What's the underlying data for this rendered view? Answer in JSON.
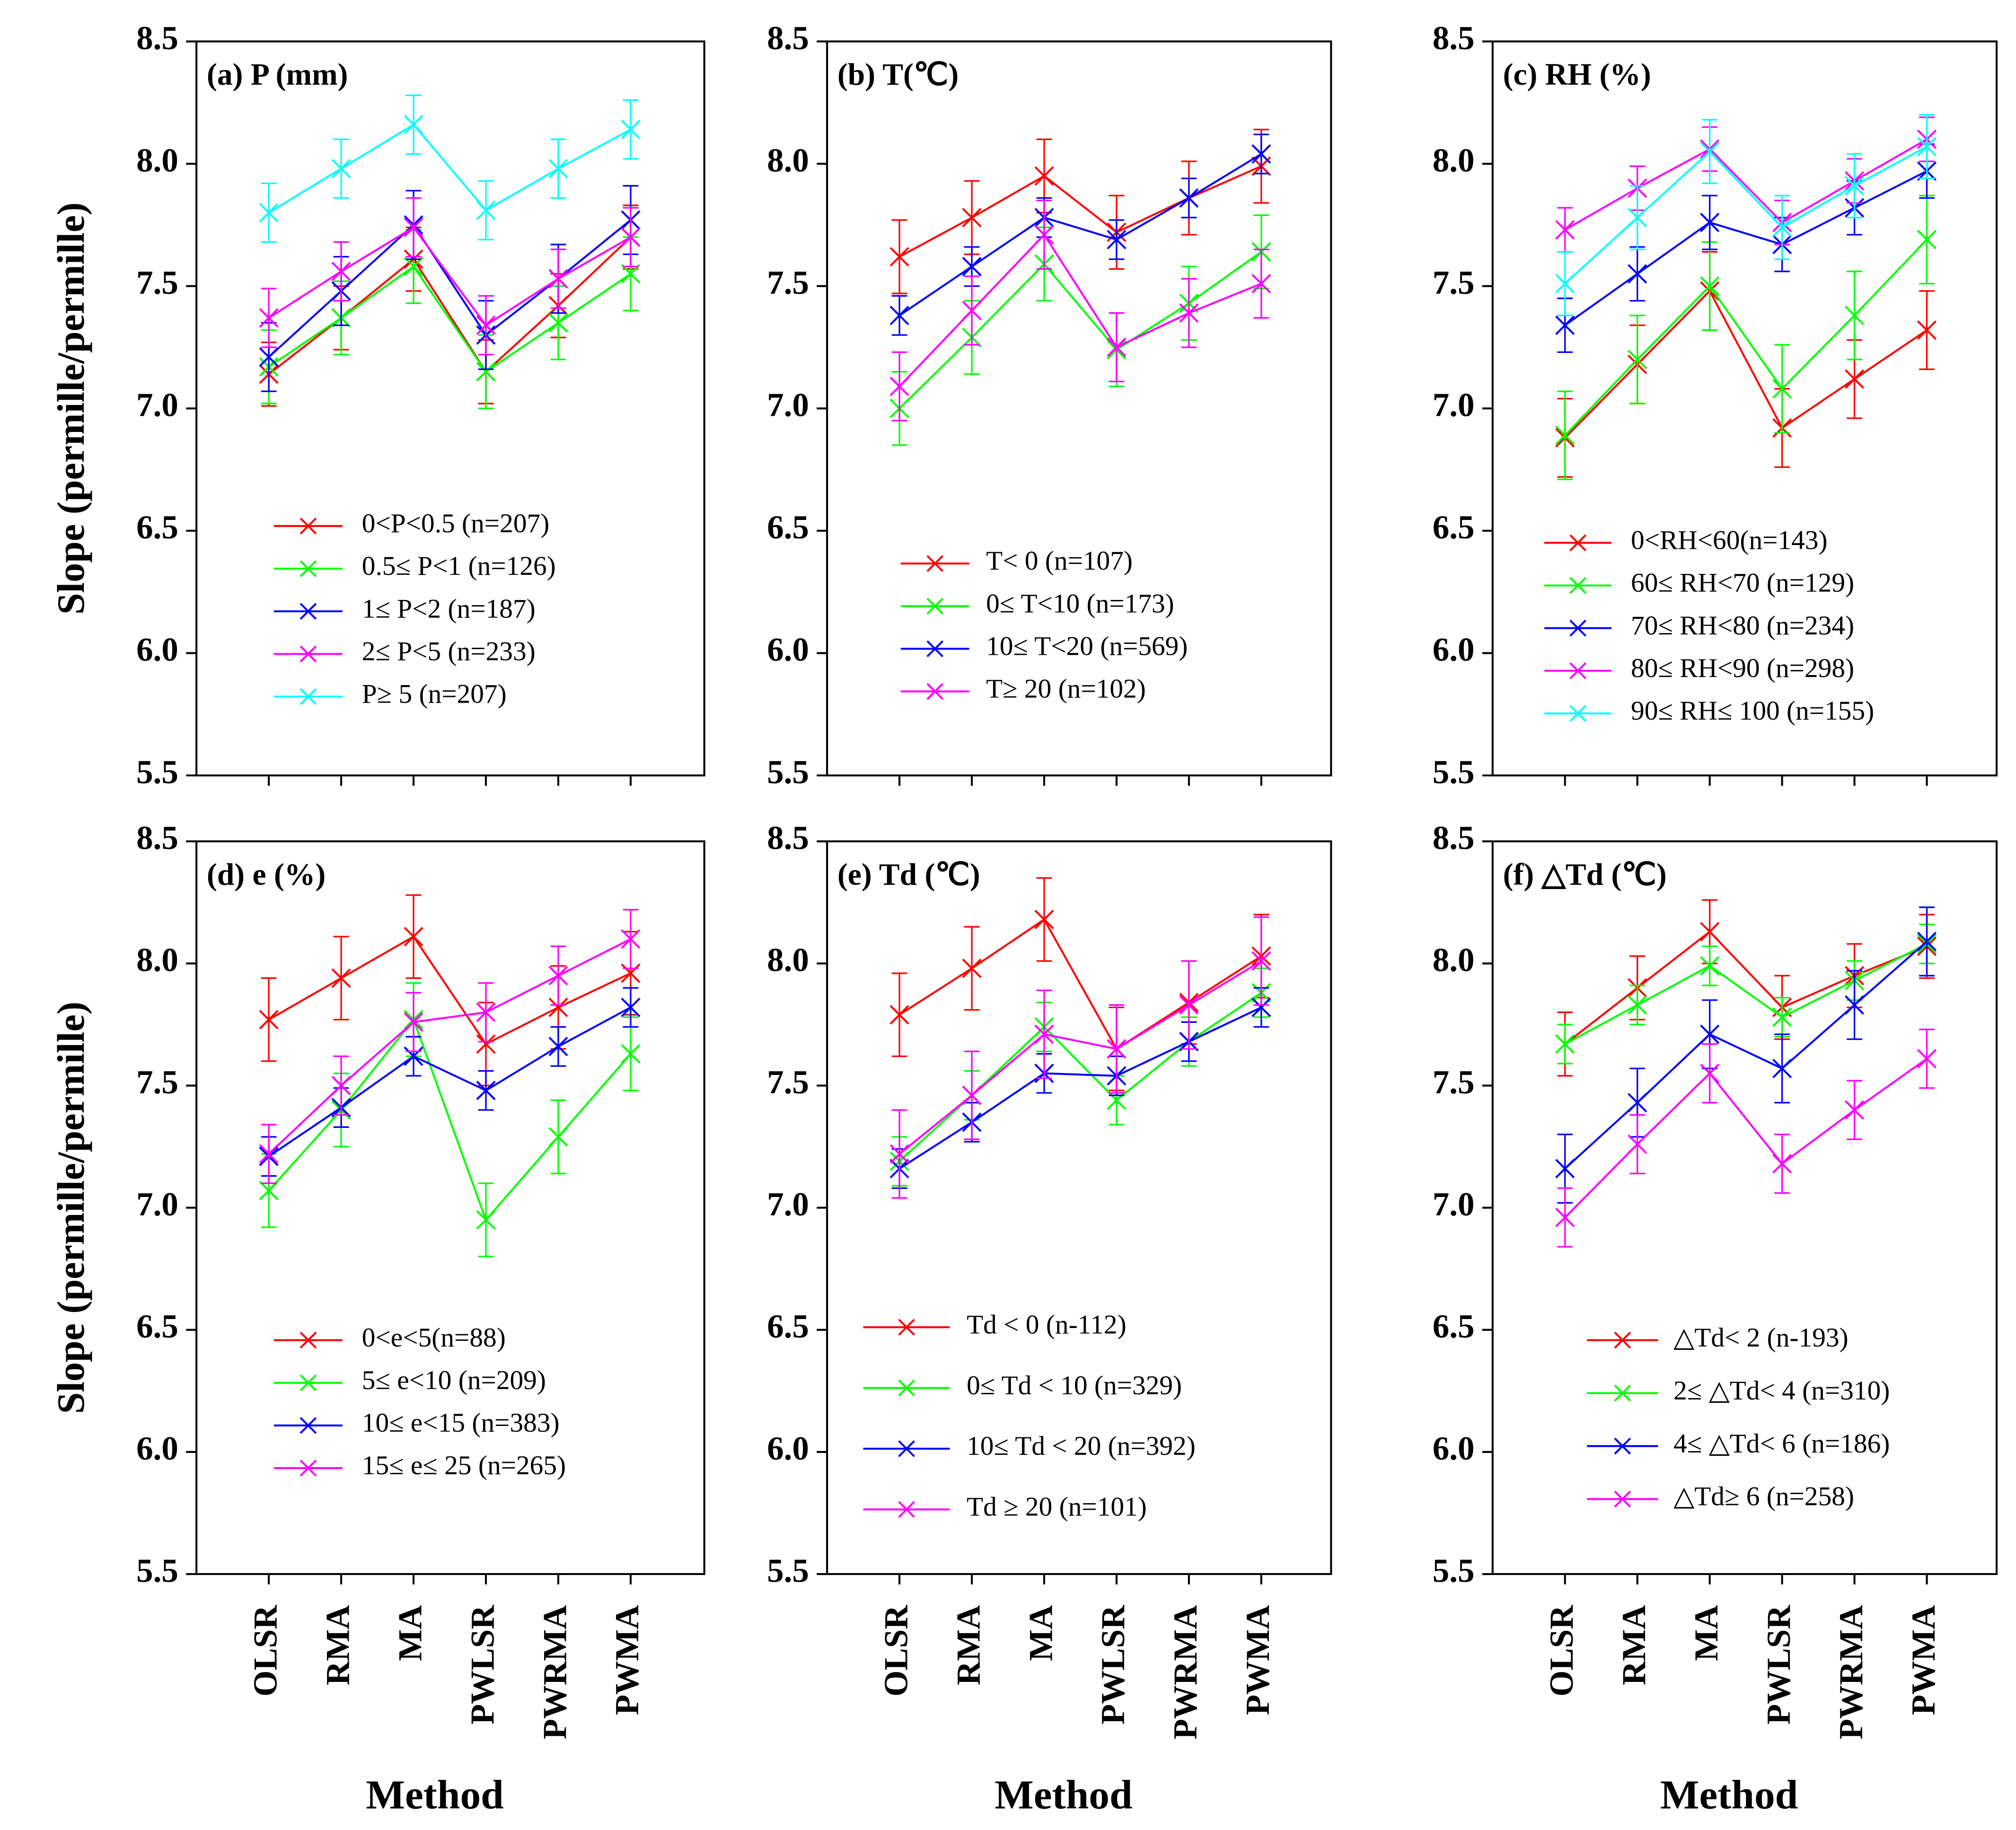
{
  "chart_data": [
    {
      "type": "line",
      "title": "(a) P (mm)",
      "ylabel": "Slope (permille/permille)",
      "categories": [
        null,
        null,
        null,
        null,
        null,
        null
      ],
      "ylim": [
        5.5,
        8.5
      ],
      "yticks": [
        5.5,
        {
          "value": 6,
          "label": "6.0"
        },
        6.5,
        {
          "value": 7,
          "label": "7.0"
        },
        7.5,
        {
          "value": 8,
          "label": "8.0"
        },
        8.5
      ],
      "series": [
        {
          "name": "0<P<0.5 (n=207)",
          "color": "#ff0000",
          "values": [
            7.14,
            7.37,
            7.61,
            7.15,
            7.42,
            7.7
          ],
          "error": 0.13
        },
        {
          "name": "0.5≤ P<1 (n=126)",
          "color": "#00ff00",
          "values": [
            7.17,
            7.37,
            7.58,
            7.15,
            7.35,
            7.55
          ],
          "error": 0.15
        },
        {
          "name": "1≤ P<2 (n=187)",
          "color": "#0000ff",
          "values": [
            7.21,
            7.48,
            7.75,
            7.3,
            7.53,
            7.77
          ],
          "error": 0.14
        },
        {
          "name": "2≤ P<5 (n=233)",
          "color": "#ff00ff",
          "values": [
            7.37,
            7.56,
            7.74,
            7.34,
            7.53,
            7.7
          ],
          "error": 0.12
        },
        {
          "name": "P≥ 5 (n=207)",
          "color": "#00ffff",
          "values": [
            7.8,
            7.98,
            8.16,
            7.81,
            7.98,
            8.14
          ],
          "error": 0.12
        }
      ]
    },
    {
      "type": "line",
      "title": "(b) T(℃)",
      "categories": [
        null,
        null,
        null,
        null,
        null,
        null
      ],
      "ylim": [
        5.5,
        8.5
      ],
      "yticks": [
        5.5,
        {
          "value": 6,
          "label": "6.0"
        },
        6.5,
        {
          "value": 7,
          "label": "7.0"
        },
        7.5,
        {
          "value": 8,
          "label": "8.0"
        },
        8.5
      ],
      "series": [
        {
          "name": "T< 0 (n=107)",
          "color": "#ff0000",
          "values": [
            7.62,
            7.78,
            7.95,
            7.72,
            7.86,
            7.99
          ],
          "error": 0.15
        },
        {
          "name": "0≤ T<10 (n=173)",
          "color": "#00ff00",
          "values": [
            7.0,
            7.29,
            7.59,
            7.24,
            7.43,
            7.64
          ],
          "error": 0.15
        },
        {
          "name": "10≤ T<20 (n=569)",
          "color": "#0000ff",
          "values": [
            7.38,
            7.58,
            7.78,
            7.69,
            7.86,
            8.04
          ],
          "error": 0.08
        },
        {
          "name": "T≥ 20 (n=102)",
          "color": "#ff00ff",
          "values": [
            7.09,
            7.4,
            7.71,
            7.25,
            7.39,
            7.51
          ],
          "error": 0.14
        }
      ]
    },
    {
      "type": "line",
      "title": "(c) RH (%)",
      "categories": [
        null,
        null,
        null,
        null,
        null,
        null
      ],
      "ylim": [
        5.5,
        8.5
      ],
      "yticks": [
        5.5,
        {
          "value": 6,
          "label": "6.0"
        },
        6.5,
        {
          "value": 7,
          "label": "7.0"
        },
        7.5,
        {
          "value": 8,
          "label": "8.0"
        },
        8.5
      ],
      "series": [
        {
          "name": "0<RH<60(n=143)",
          "color": "#ff0000",
          "values": [
            6.88,
            7.18,
            7.48,
            6.92,
            7.12,
            7.32
          ],
          "error": 0.16
        },
        {
          "name": "60≤ RH<70 (n=129)",
          "color": "#00ff00",
          "values": [
            6.89,
            7.2,
            7.5,
            7.08,
            7.38,
            7.69
          ],
          "error": 0.18
        },
        {
          "name": "70≤ RH<80 (n=234)",
          "color": "#0000ff",
          "values": [
            7.34,
            7.55,
            7.76,
            7.67,
            7.82,
            7.97
          ],
          "error": 0.11
        },
        {
          "name": "80≤ RH<90 (n=298)",
          "color": "#ff00ff",
          "values": [
            7.73,
            7.9,
            8.06,
            7.76,
            7.93,
            8.1
          ],
          "error": 0.09
        },
        {
          "name": "90≤ RH≤ 100 (n=155)",
          "color": "#00ffff",
          "values": [
            7.51,
            7.78,
            8.05,
            7.74,
            7.91,
            8.07
          ],
          "error": 0.13
        }
      ]
    },
    {
      "type": "line",
      "title": "(d) e (%)",
      "ylabel": "Slope (permille/permille)",
      "xlabel": "Method",
      "categories": [
        "OLSR",
        "RMA",
        "MA",
        "PWLSR",
        "PWRMA",
        "PWMA"
      ],
      "ylim": [
        5.5,
        8.5
      ],
      "yticks": [
        5.5,
        {
          "value": 6,
          "label": "6.0"
        },
        6.5,
        {
          "value": 7,
          "label": "7.0"
        },
        7.5,
        {
          "value": 8,
          "label": "8.0"
        },
        8.5
      ],
      "series": [
        {
          "name": "0<e<5(n=88)",
          "color": "#ff0000",
          "values": [
            7.77,
            7.94,
            8.11,
            7.67,
            7.82,
            7.96
          ],
          "error": 0.17
        },
        {
          "name": "5≤ e<10 (n=209)",
          "color": "#00ff00",
          "values": [
            7.07,
            7.4,
            7.77,
            6.95,
            7.29,
            7.63
          ],
          "error": 0.15
        },
        {
          "name": "10≤ e<15 (n=383)",
          "color": "#0000ff",
          "values": [
            7.21,
            7.41,
            7.62,
            7.48,
            7.66,
            7.82
          ],
          "error": 0.08
        },
        {
          "name": "15≤ e≤ 25 (n=265)",
          "color": "#ff00ff",
          "values": [
            7.22,
            7.5,
            7.76,
            7.8,
            7.95,
            8.1
          ],
          "error": 0.12
        }
      ]
    },
    {
      "type": "line",
      "title": "(e) Td (℃)",
      "xlabel": "Method",
      "categories": [
        "OLSR",
        "RMA",
        "MA",
        "PWLSR",
        "PWRMA",
        "PWMA"
      ],
      "ylim": [
        5.5,
        8.5
      ],
      "yticks": [
        5.5,
        {
          "value": 6,
          "label": "6.0"
        },
        6.5,
        {
          "value": 7,
          "label": "7.0"
        },
        7.5,
        {
          "value": 8,
          "label": "8.0"
        },
        8.5
      ],
      "series": [
        {
          "name": "Td < 0 (n-112)",
          "color": "#ff0000",
          "values": [
            7.79,
            7.98,
            8.18,
            7.65,
            7.84,
            8.03
          ],
          "error": 0.17
        },
        {
          "name": "0≤ Td < 10 (n=329)",
          "color": "#00ff00",
          "values": [
            7.19,
            7.46,
            7.74,
            7.44,
            7.68,
            7.88
          ],
          "error": 0.1
        },
        {
          "name": "10≤ Td < 20 (n=392)",
          "color": "#0000ff",
          "values": [
            7.16,
            7.35,
            7.55,
            7.54,
            7.68,
            7.82
          ],
          "error": 0.08
        },
        {
          "name": "Td ≥ 20 (n=101)",
          "color": "#ff00ff",
          "values": [
            7.22,
            7.46,
            7.71,
            7.65,
            7.83,
            8.01
          ],
          "error": 0.18
        }
      ]
    },
    {
      "type": "line",
      "title": "(f) △Td (℃)",
      "xlabel": "Method",
      "categories": [
        "OLSR",
        "RMA",
        "MA",
        "PWLSR",
        "PWRMA",
        "PWMA"
      ],
      "ylim": [
        5.5,
        8.5
      ],
      "yticks": [
        5.5,
        {
          "value": 6,
          "label": "6.0"
        },
        6.5,
        {
          "value": 7,
          "label": "7.0"
        },
        7.5,
        {
          "value": 8,
          "label": "8.0"
        },
        8.5
      ],
      "series": [
        {
          "name": "△Td< 2 (n-193)",
          "color": "#ff0000",
          "values": [
            7.67,
            7.9,
            8.13,
            7.82,
            7.95,
            8.07
          ],
          "error": 0.13
        },
        {
          "name": "2≤ △Td< 4 (n=310)",
          "color": "#00ff00",
          "values": [
            7.67,
            7.83,
            7.99,
            7.78,
            7.93,
            8.08
          ],
          "error": 0.08
        },
        {
          "name": "4≤ △Td< 6 (n=186)",
          "color": "#0000ff",
          "values": [
            7.16,
            7.43,
            7.71,
            7.57,
            7.83,
            8.09
          ],
          "error": 0.14
        },
        {
          "name": "△Td≥ 6 (n=258)",
          "color": "#ff00ff",
          "values": [
            6.96,
            7.26,
            7.55,
            7.18,
            7.4,
            7.61
          ],
          "error": 0.12
        }
      ]
    }
  ]
}
